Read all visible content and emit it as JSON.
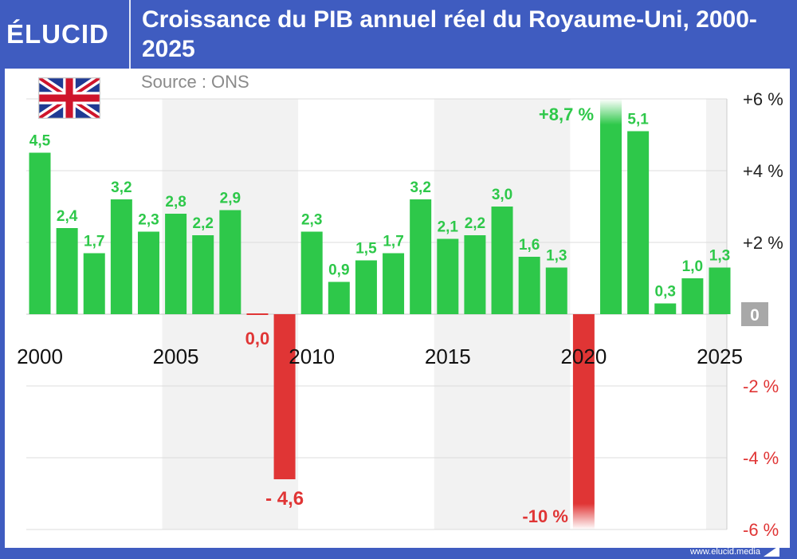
{
  "header": {
    "logo_text": "ÉLUCID",
    "title": "Croissance du PIB annuel réel du Royaume-Uni, 2000-2025"
  },
  "source": "Source : ONS",
  "footer": {
    "url": "www.elucid.media"
  },
  "flag_icon": "uk-flag-icon",
  "colors": {
    "positive": "#2ec84a",
    "negative": "#e03535",
    "header_bg": "#3f5cc0",
    "band": "#f2f2f2",
    "grid": "#dcdcdc",
    "zero_badge": "#a8a8a8"
  },
  "chart_data": {
    "type": "bar",
    "title": "Croissance du PIB annuel réel du Royaume-Uni, 2000-2025",
    "categories": [
      "2000",
      "2001",
      "2002",
      "2003",
      "2004",
      "2005",
      "2006",
      "2007",
      "2008",
      "2009",
      "2010",
      "2011",
      "2012",
      "2013",
      "2014",
      "2015",
      "2016",
      "2017",
      "2018",
      "2019",
      "2020",
      "2021",
      "2022",
      "2023",
      "2024",
      "2025"
    ],
    "values": [
      4.5,
      2.4,
      1.7,
      3.2,
      2.3,
      2.8,
      2.2,
      2.9,
      0.0,
      -4.6,
      2.3,
      0.9,
      1.5,
      1.7,
      3.2,
      2.1,
      2.2,
      3.0,
      1.6,
      1.3,
      -10,
      8.7,
      5.1,
      0.3,
      1.0,
      1.3
    ],
    "data_labels": [
      "4,5",
      "2,4",
      "1,7",
      "3,2",
      "2,3",
      "2,8",
      "2,2",
      "2,9",
      "0,0",
      "- 4,6",
      "2,3",
      "0,9",
      "1,5",
      "1,7",
      "3,2",
      "2,1",
      "2,2",
      "3,0",
      "1,6",
      "1,3",
      "-10 %",
      "+8,7 %",
      "5,1",
      "0,3",
      "1,0",
      "1,3"
    ],
    "x_ticks": [
      "2000",
      "2005",
      "2010",
      "2015",
      "2020",
      "2025"
    ],
    "y_ticks": [
      {
        "value": 6,
        "label": "+6 %"
      },
      {
        "value": 4,
        "label": "+4 %"
      },
      {
        "value": 2,
        "label": "+2 %"
      },
      {
        "value": 0,
        "label": "0"
      },
      {
        "value": -2,
        "label": "-2 %"
      },
      {
        "value": -4,
        "label": "-4 %"
      },
      {
        "value": -6,
        "label": "-6 %"
      }
    ],
    "ylim": [
      -6,
      6
    ],
    "axis_side": "right",
    "grid": true,
    "truncated_bars": [
      "2020",
      "2021"
    ],
    "legend": "none"
  }
}
